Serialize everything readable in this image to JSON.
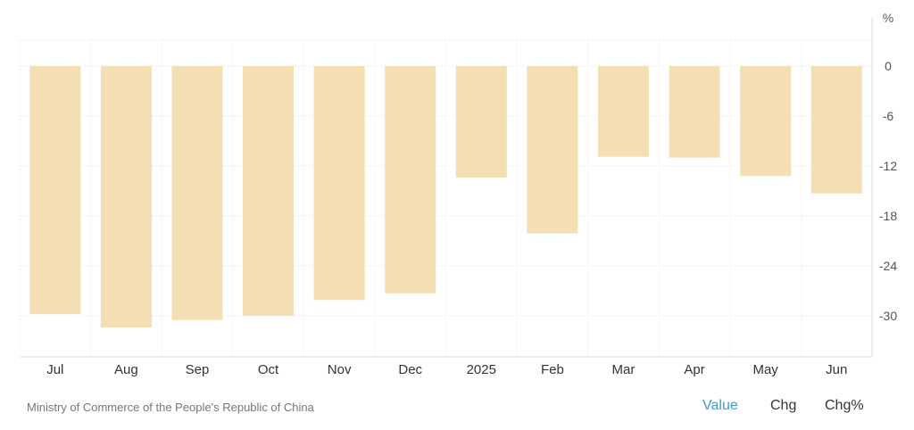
{
  "chart_data": {
    "type": "bar",
    "categories": [
      "Jul",
      "Aug",
      "Sep",
      "Oct",
      "Nov",
      "Dec",
      "2025",
      "Feb",
      "Mar",
      "Apr",
      "May",
      "Jun"
    ],
    "values": [
      -29.8,
      -31.4,
      -30.5,
      -30.0,
      -28.1,
      -27.3,
      -13.4,
      -20.1,
      -10.9,
      -11.0,
      -13.2,
      -15.3
    ],
    "unit": "%",
    "y_ticks": [
      "0",
      "-6",
      "-12",
      "-18",
      "-24",
      "-30"
    ],
    "ylim": [
      -34.5,
      3.2
    ],
    "grid": true,
    "bar_color": "#f4deb3"
  },
  "footer": {
    "source": "Ministry of Commerce of the People's Republic of China",
    "tabs": {
      "value": "Value",
      "chg": "Chg",
      "chg_pct": "Chg%"
    }
  }
}
